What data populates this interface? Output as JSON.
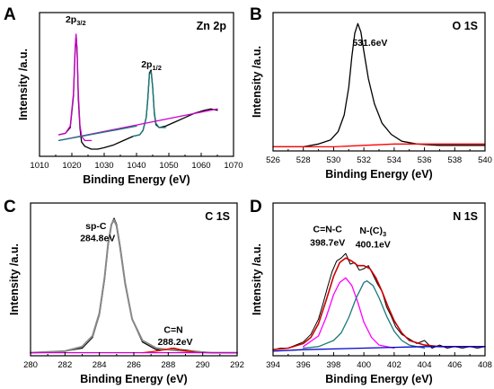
{
  "figure": {
    "background": "#ffffff"
  },
  "chart_data": [
    {
      "panel_letter": "A",
      "type": "line",
      "title": "Zn 2p",
      "xlabel": "Binding Energy (eV)",
      "ylabel": "Intensity /a.u.",
      "xlim": [
        1010,
        1070
      ],
      "ylim": [
        0,
        1
      ],
      "xticks": [
        1010,
        1020,
        1030,
        1040,
        1050,
        1060,
        1070
      ],
      "yticks": [],
      "annotations": [
        {
          "base": "2p",
          "sub": "3/2",
          "x": 1021.2,
          "y": 0.93
        },
        {
          "base": "2p",
          "sub": "1/2",
          "x": 1044.6,
          "y": 0.62
        }
      ],
      "series": [
        {
          "role": "measured",
          "color": "#000000",
          "width": 1.3,
          "x": [
            1016,
            1018,
            1019.5,
            1020.5,
            1021,
            1021.3,
            1021.6,
            1022,
            1022.5,
            1023,
            1024,
            1026,
            1028,
            1030,
            1033,
            1036,
            1039,
            1041,
            1042,
            1043,
            1043.5,
            1044,
            1044.5,
            1045,
            1045.5,
            1046,
            1047,
            1049,
            1052,
            1055,
            1058,
            1061,
            1063,
            1065
          ],
          "y": [
            0.15,
            0.16,
            0.2,
            0.42,
            0.72,
            0.84,
            0.74,
            0.4,
            0.2,
            0.1,
            0.07,
            0.05,
            0.05,
            0.06,
            0.08,
            0.11,
            0.14,
            0.15,
            0.18,
            0.27,
            0.4,
            0.58,
            0.6,
            0.48,
            0.3,
            0.22,
            0.2,
            0.21,
            0.24,
            0.27,
            0.3,
            0.32,
            0.33,
            0.32
          ]
        },
        {
          "role": "fit",
          "color": "#cc00cc",
          "width": 1.3,
          "x": [
            1016,
            1018,
            1019.5,
            1020.5,
            1021,
            1021.3,
            1021.6,
            1022,
            1022.5,
            1023,
            1024,
            1026
          ],
          "y": [
            0.15,
            0.16,
            0.21,
            0.44,
            0.75,
            0.85,
            0.75,
            0.44,
            0.22,
            0.14,
            0.11,
            0.11
          ]
        },
        {
          "role": "fit",
          "color": "#1a7a7a",
          "width": 1.3,
          "x": [
            1039,
            1041,
            1042,
            1043,
            1043.5,
            1044,
            1044.5,
            1045,
            1045.5,
            1046,
            1047,
            1049
          ],
          "y": [
            0.14,
            0.15,
            0.18,
            0.27,
            0.41,
            0.57,
            0.59,
            0.48,
            0.31,
            0.23,
            0.2,
            0.2
          ]
        },
        {
          "role": "background",
          "color": "#cc00cc",
          "width": 1.3,
          "x": [
            1016,
            1065
          ],
          "y": [
            0.11,
            0.33
          ]
        },
        {
          "role": "background",
          "color": "#1a7a7a",
          "width": 1.3,
          "x": [
            1016,
            1040
          ],
          "y": [
            0.11,
            0.21
          ]
        }
      ]
    },
    {
      "panel_letter": "B",
      "type": "line",
      "title": "O 1S",
      "xlabel": "Binding Energy (eV)",
      "ylabel": "Intensity /a.u.",
      "xlim": [
        526,
        540
      ],
      "ylim": [
        0,
        1
      ],
      "xticks": [
        526,
        528,
        530,
        532,
        534,
        536,
        538,
        540
      ],
      "yticks": [],
      "annotations": [
        {
          "text": "531.6eV",
          "x": 532.4,
          "y": 0.76
        }
      ],
      "series": [
        {
          "role": "measured",
          "color": "#000000",
          "width": 1.3,
          "x": [
            526,
            528,
            529,
            529.8,
            530.3,
            530.7,
            531,
            531.2,
            531.4,
            531.6,
            531.8,
            532,
            532.3,
            532.7,
            533.2,
            533.8,
            534.5,
            535.5,
            537,
            538.5,
            540
          ],
          "y": [
            0.03,
            0.03,
            0.05,
            0.08,
            0.14,
            0.26,
            0.46,
            0.68,
            0.85,
            0.92,
            0.86,
            0.72,
            0.52,
            0.34,
            0.2,
            0.12,
            0.07,
            0.05,
            0.04,
            0.04,
            0.04
          ]
        },
        {
          "role": "background",
          "color": "#ff0000",
          "width": 1.3,
          "x": [
            526,
            530,
            532,
            534,
            536,
            540
          ],
          "y": [
            0.03,
            0.03,
            0.04,
            0.05,
            0.05,
            0.05
          ]
        }
      ]
    },
    {
      "panel_letter": "C",
      "type": "line",
      "title": "C 1S",
      "xlabel": "Binding Energy (eV)",
      "ylabel": "Intensity /a.u.",
      "xlim": [
        280,
        292
      ],
      "ylim": [
        0,
        1
      ],
      "xticks": [
        280,
        282,
        284,
        286,
        288,
        290,
        292
      ],
      "yticks": [],
      "annotations": [
        {
          "text": "sp-C",
          "x": 283.8,
          "y": 0.83
        },
        {
          "text": "284.8eV",
          "x": 283.9,
          "y": 0.75
        },
        {
          "text": "C=N",
          "x": 288.3,
          "y": 0.15
        },
        {
          "text": "288.2eV",
          "x": 288.4,
          "y": 0.07
        }
      ],
      "series": [
        {
          "role": "measured",
          "color": "#000000",
          "width": 1.3,
          "x": [
            280,
            282,
            283,
            283.6,
            284,
            284.3,
            284.5,
            284.7,
            284.85,
            285,
            285.2,
            285.5,
            285.9,
            286.5,
            287.3,
            288,
            288.3,
            288.7,
            289.5,
            290.5,
            292
          ],
          "y": [
            0.02,
            0.03,
            0.05,
            0.12,
            0.27,
            0.5,
            0.72,
            0.86,
            0.9,
            0.86,
            0.72,
            0.48,
            0.24,
            0.09,
            0.04,
            0.04,
            0.05,
            0.04,
            0.03,
            0.02,
            0.02
          ]
        },
        {
          "role": "fit",
          "color": "#888888",
          "width": 2.0,
          "x": [
            280,
            282,
            283,
            283.6,
            284,
            284.3,
            284.5,
            284.7,
            284.85,
            285,
            285.2,
            285.5,
            285.9,
            286.5,
            287.3,
            288,
            289,
            290.5,
            292
          ],
          "y": [
            0.02,
            0.03,
            0.06,
            0.13,
            0.28,
            0.51,
            0.73,
            0.86,
            0.89,
            0.85,
            0.71,
            0.47,
            0.24,
            0.1,
            0.05,
            0.04,
            0.03,
            0.02,
            0.02
          ]
        },
        {
          "role": "fit",
          "color": "#ff0000",
          "width": 1.3,
          "x": [
            286.5,
            287.3,
            287.8,
            288.2,
            288.6,
            289.1,
            289.8
          ],
          "y": [
            0.02,
            0.03,
            0.04,
            0.05,
            0.04,
            0.03,
            0.02
          ]
        },
        {
          "role": "background",
          "color": "#cc00cc",
          "width": 1.3,
          "x": [
            280,
            292
          ],
          "y": [
            0.02,
            0.02
          ]
        }
      ]
    },
    {
      "panel_letter": "D",
      "type": "line",
      "title": "N 1S",
      "xlabel": "Binding Energy (eV)",
      "ylabel": "Intensity /a.u.",
      "xlim": [
        394,
        408
      ],
      "ylim": [
        0,
        1
      ],
      "xticks": [
        394,
        396,
        398,
        400,
        402,
        404,
        406,
        408
      ],
      "yticks": [],
      "annotations": [
        {
          "text": "C=N-C",
          "x": 397.6,
          "y": 0.81
        },
        {
          "text": "398.7eV",
          "x": 397.6,
          "y": 0.72
        },
        {
          "base": "N-(C)",
          "sub": "3",
          "x": 400.6,
          "y": 0.8
        },
        {
          "text": "400.1eV",
          "x": 400.6,
          "y": 0.71
        }
      ],
      "series": [
        {
          "role": "measured",
          "color": "#000000",
          "width": 1.0,
          "x": [
            394,
            394.5,
            395,
            395.5,
            396,
            396.5,
            397,
            397.3,
            397.6,
            397.9,
            398.2,
            398.5,
            398.8,
            399.1,
            399.4,
            399.7,
            400,
            400.3,
            400.6,
            400.9,
            401.2,
            401.5,
            401.8,
            402.1,
            402.5,
            403,
            403.5,
            404,
            404.5,
            405,
            405.5,
            406,
            406.5,
            407,
            407.5,
            408
          ],
          "y": [
            0.04,
            0.05,
            0.05,
            0.07,
            0.09,
            0.14,
            0.24,
            0.34,
            0.45,
            0.55,
            0.62,
            0.64,
            0.67,
            0.6,
            0.61,
            0.56,
            0.57,
            0.59,
            0.53,
            0.47,
            0.42,
            0.32,
            0.26,
            0.19,
            0.14,
            0.11,
            0.08,
            0.1,
            0.05,
            0.07,
            0.05,
            0.06,
            0.05,
            0.06,
            0.05,
            0.06
          ]
        },
        {
          "role": "envelope",
          "color": "#cc0000",
          "width": 1.6,
          "x": [
            394,
            395,
            396,
            396.5,
            397,
            397.5,
            398,
            398.4,
            398.8,
            399.2,
            399.6,
            400,
            400.4,
            400.8,
            401.2,
            401.6,
            402,
            402.5,
            403,
            404,
            405,
            406,
            408
          ],
          "y": [
            0.04,
            0.05,
            0.08,
            0.12,
            0.21,
            0.36,
            0.52,
            0.61,
            0.64,
            0.62,
            0.59,
            0.59,
            0.57,
            0.51,
            0.42,
            0.32,
            0.23,
            0.15,
            0.1,
            0.07,
            0.06,
            0.06,
            0.06
          ]
        },
        {
          "role": "fit",
          "color": "#ff00ff",
          "width": 1.3,
          "x": [
            396,
            397,
            397.5,
            398,
            398.4,
            398.8,
            399.2,
            399.6,
            400,
            400.5,
            401,
            402
          ],
          "y": [
            0.06,
            0.13,
            0.25,
            0.4,
            0.48,
            0.51,
            0.46,
            0.35,
            0.22,
            0.12,
            0.07,
            0.05
          ]
        },
        {
          "role": "fit",
          "color": "#1a7a7a",
          "width": 1.3,
          "x": [
            396,
            397,
            398,
            398.5,
            399,
            399.5,
            400,
            400.2,
            400.6,
            401,
            401.5,
            402,
            402.5,
            403,
            404
          ],
          "y": [
            0.05,
            0.06,
            0.1,
            0.15,
            0.25,
            0.38,
            0.48,
            0.49,
            0.46,
            0.38,
            0.26,
            0.16,
            0.1,
            0.07,
            0.05
          ]
        },
        {
          "role": "background",
          "color": "#0000cc",
          "width": 1.3,
          "x": [
            394,
            396,
            398,
            400,
            402,
            404,
            406,
            408
          ],
          "y": [
            0.03,
            0.04,
            0.045,
            0.05,
            0.055,
            0.06,
            0.06,
            0.06
          ]
        }
      ]
    }
  ]
}
